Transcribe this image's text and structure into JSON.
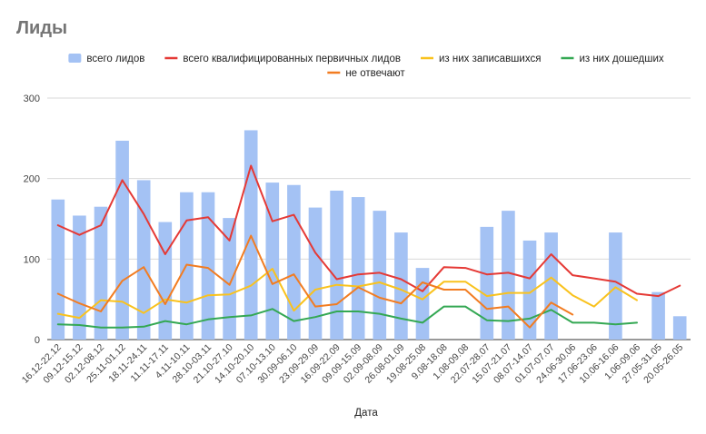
{
  "title": "Лиды",
  "chart_data": {
    "type": "bar",
    "title": "Лиды",
    "xlabel": "Дата",
    "ylabel": "",
    "ylim": [
      0,
      300
    ],
    "yticks": [
      0,
      100,
      200,
      300
    ],
    "grid": true,
    "legend_position": "top",
    "categories": [
      "16.12-22.12",
      "09.12-15.12",
      "02.12-08.12",
      "25.11-01.12",
      "18.11-24.11",
      "11.11-17.11",
      "4.11-10.11",
      "28.10-03.11",
      "21.10-27.10",
      "14.10-20.10",
      "07.10-13.10",
      "30.09-06.10",
      "23.09-29.09",
      "16.09-22.09",
      "09.09-15.09",
      "02.09-08.09",
      "26.08-01.09",
      "19.08-25.08",
      "9.08-18.08",
      "1.08-09.08",
      "22.07-28.07",
      "15.07-21.07",
      "08.07-14.07",
      "01.07-07.07",
      "24.06-30.06",
      "17.06-23.06",
      "10.06-16.06",
      "1.06-09.06",
      "27.05-31.05",
      "20.05-26.05"
    ],
    "xtick_labels_shown": [
      "16.12-22.12",
      "09.12-15.12",
      "02.12-08.12",
      "25.11-01.12",
      "18.11-24.11",
      "11.11-17.11",
      "4.11-10.11",
      "28.10-03.11",
      "21.10-27.10",
      "14.10-20.10",
      "07.10-13.10",
      "30.09-06.10",
      "23.09-29.09",
      "16.09-22.09",
      "09.09-15.09",
      "02.09-08.09",
      "26.08-01.09",
      "19.08-25.08",
      "9.08-18.08",
      "1.08-09.08",
      "22.07-28.07",
      "15.07-21.07",
      "08.07-14.07",
      "01.07-07.07",
      "24.06-30.06",
      "17.06-23.06",
      "10.06-16.06",
      "1.06-09.06",
      "27.05-31.05",
      "20.05-26.05"
    ],
    "series": [
      {
        "name": "всего лидов",
        "type": "bar",
        "color": "#a4c2f4",
        "values": [
          174,
          154,
          165,
          247,
          198,
          146,
          183,
          183,
          151,
          260,
          195,
          192,
          164,
          185,
          177,
          160,
          133,
          89,
          null,
          null,
          140,
          160,
          123,
          133,
          null,
          null,
          133,
          null,
          59,
          29
        ]
      },
      {
        "name": "всего квалифицированных первичных лидов",
        "type": "line",
        "color": "#e53935",
        "values": [
          142,
          130,
          142,
          198,
          156,
          106,
          148,
          152,
          123,
          216,
          147,
          155,
          108,
          75,
          81,
          83,
          75,
          60,
          90,
          89,
          81,
          83,
          76,
          106,
          80,
          76,
          72,
          57,
          54,
          67
        ]
      },
      {
        "name": "из них записавшихся",
        "type": "line",
        "color": "#f9c21d",
        "values": [
          32,
          27,
          49,
          47,
          33,
          50,
          46,
          55,
          56,
          67,
          88,
          36,
          62,
          68,
          66,
          71,
          62,
          50,
          72,
          72,
          54,
          58,
          58,
          77,
          55,
          41,
          65,
          49,
          null,
          null
        ]
      },
      {
        "name": "из них дошедших",
        "type": "line",
        "color": "#34a853",
        "values": [
          19,
          18,
          15,
          15,
          16,
          23,
          19,
          25,
          28,
          30,
          38,
          23,
          28,
          35,
          35,
          32,
          26,
          21,
          41,
          41,
          24,
          23,
          26,
          37,
          21,
          21,
          19,
          21,
          null,
          null
        ]
      },
      {
        "name": "не отвечают",
        "type": "line",
        "color": "#f27c21",
        "values": [
          57,
          45,
          35,
          73,
          90,
          44,
          93,
          89,
          68,
          129,
          69,
          81,
          41,
          44,
          65,
          52,
          45,
          71,
          62,
          62,
          38,
          41,
          15,
          46,
          31,
          null,
          null,
          null,
          null,
          null
        ]
      }
    ]
  }
}
